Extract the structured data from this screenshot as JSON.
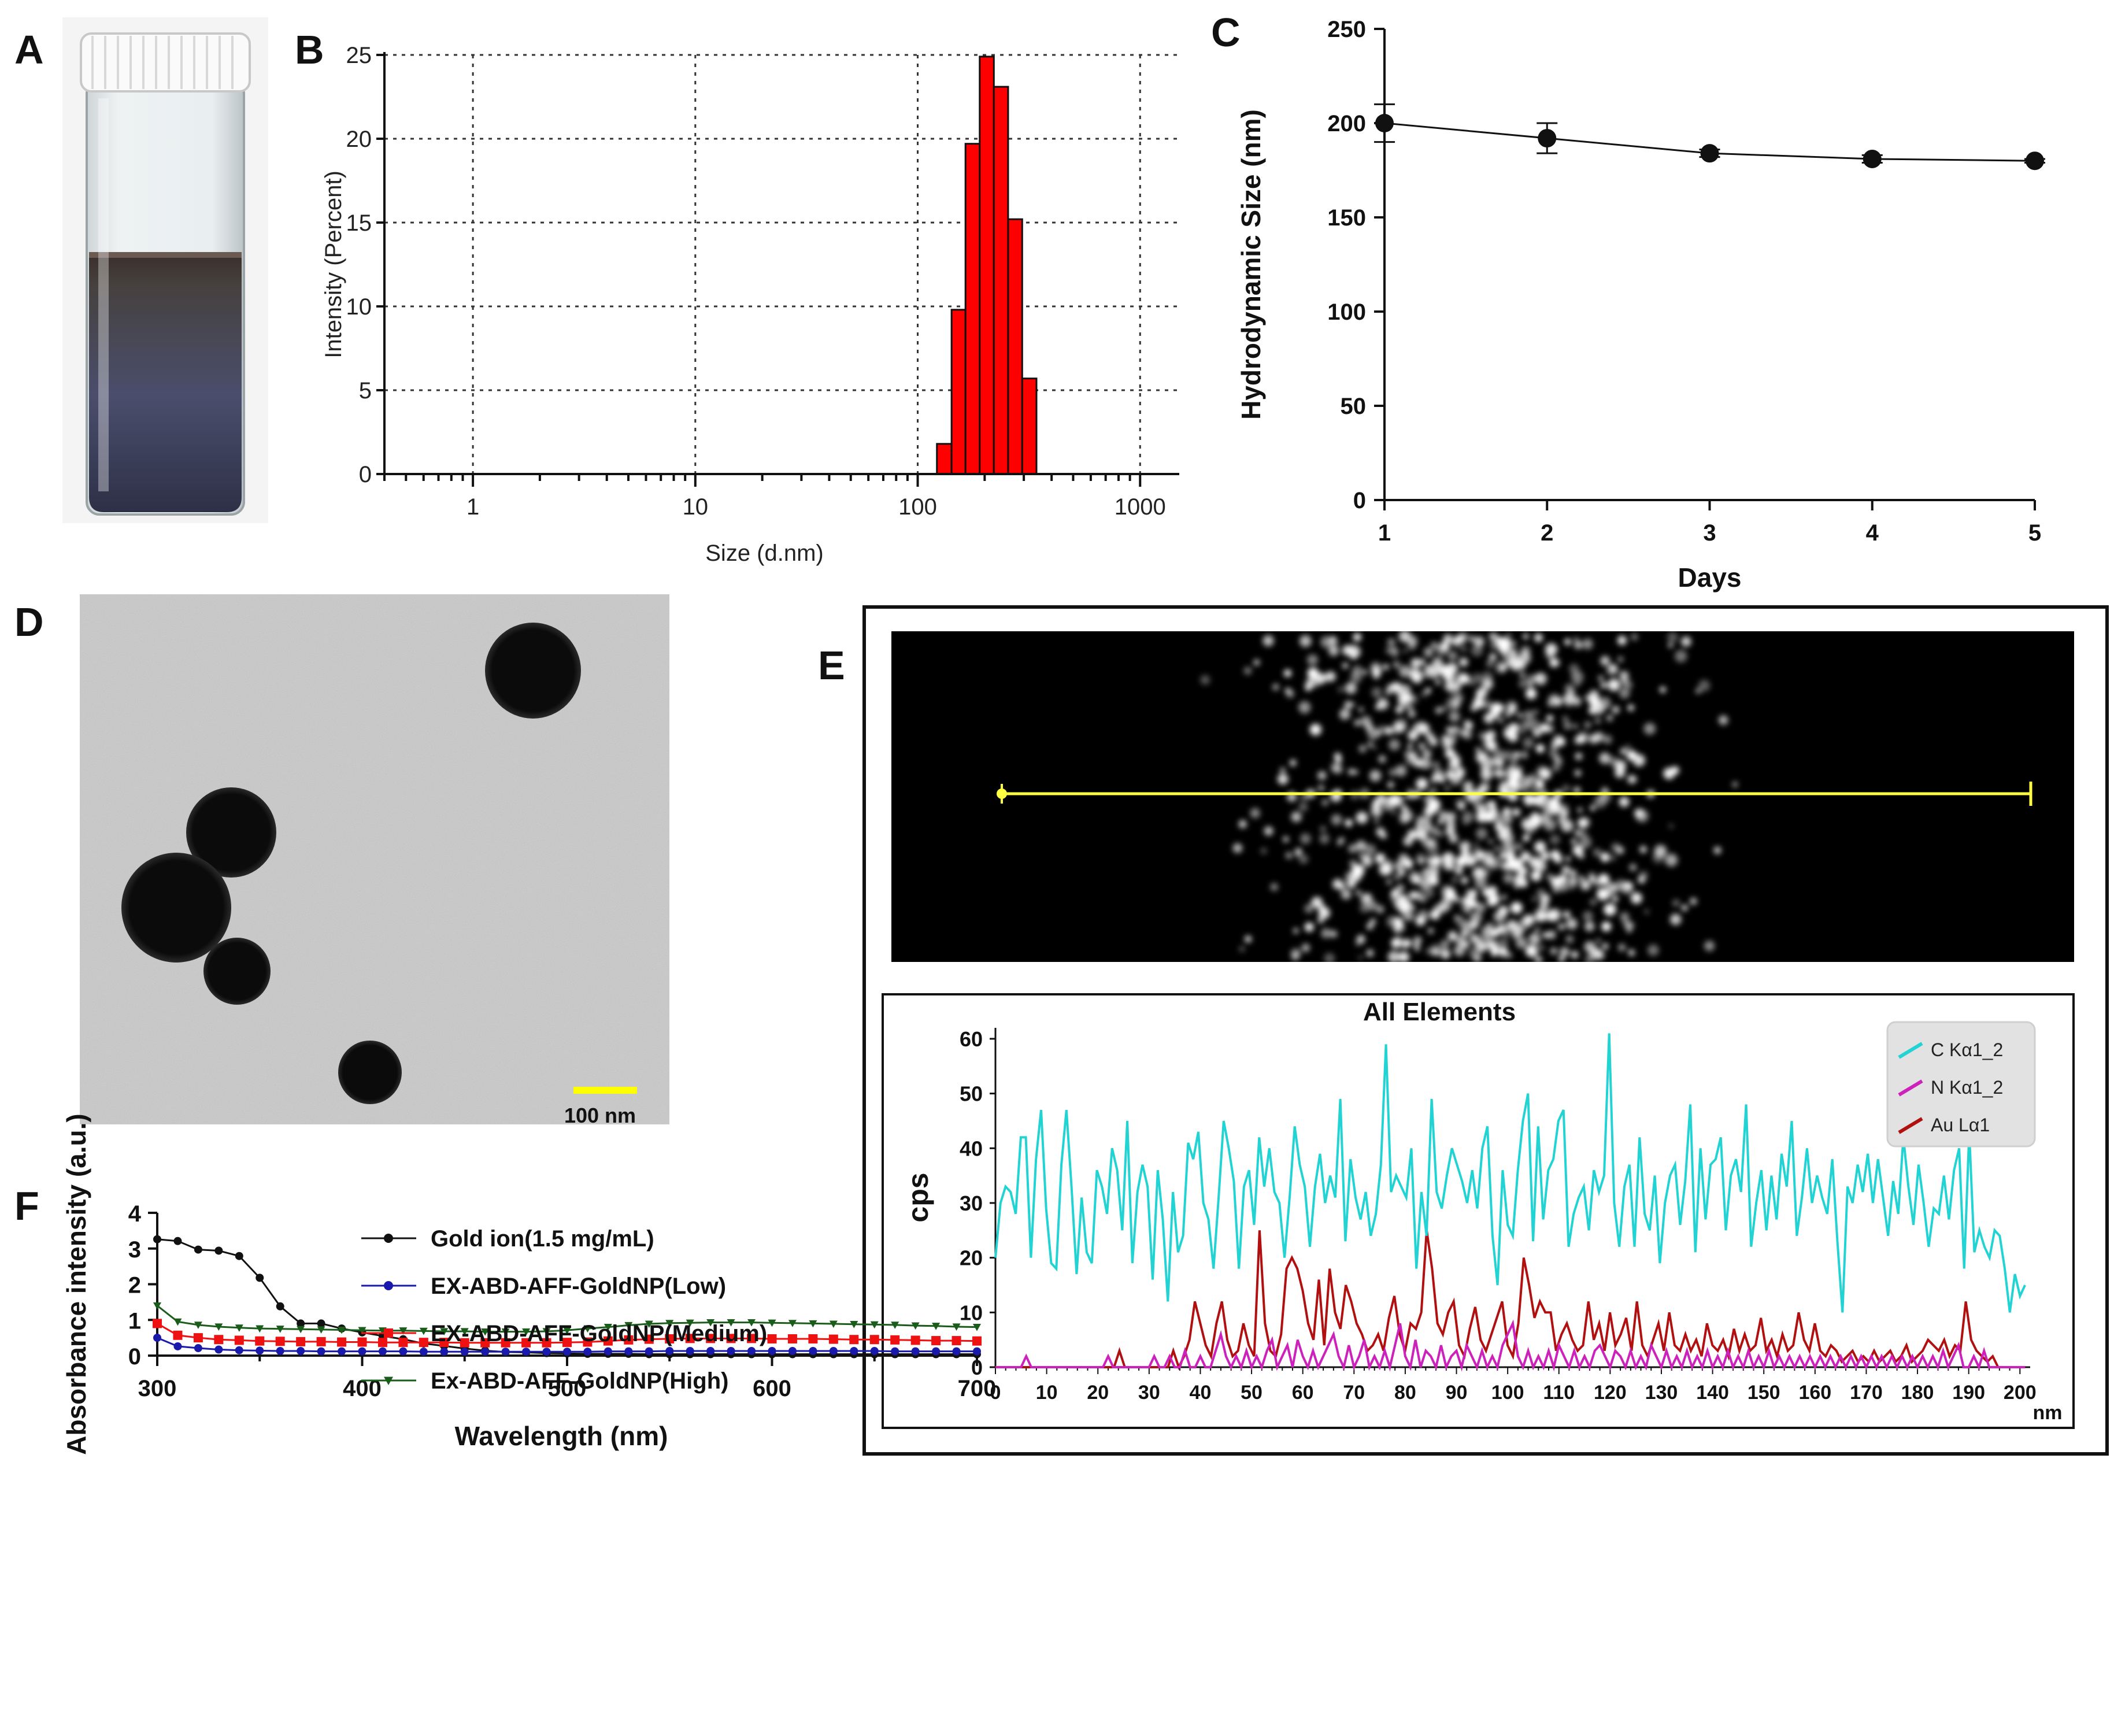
{
  "panels": {
    "A": {
      "label": "A"
    },
    "B": {
      "label": "B"
    },
    "C": {
      "label": "C"
    },
    "D": {
      "label": "D",
      "scalebar": "100 nm"
    },
    "E": {
      "label": "E"
    },
    "F": {
      "label": "F"
    }
  },
  "chart_data": [
    {
      "id": "B",
      "type": "bar",
      "title": "",
      "xlabel": "Size (d.nm)",
      "ylabel": "Intensity (Percent)",
      "xscale": "log",
      "xlim": [
        0.4,
        1500
      ],
      "ylim": [
        0,
        25
      ],
      "xticks": [
        1,
        10,
        100,
        1000
      ],
      "xtick_labels": [
        "1",
        "10",
        "100",
        "1000"
      ],
      "yticks": [
        0,
        5,
        10,
        15,
        20,
        25
      ],
      "grid": true,
      "color": "#ff0000",
      "bins": [
        {
          "from": 122,
          "to": 142,
          "value": 1.8
        },
        {
          "from": 142,
          "to": 164,
          "value": 9.8
        },
        {
          "from": 164,
          "to": 190,
          "value": 19.7
        },
        {
          "from": 190,
          "to": 220,
          "value": 24.9
        },
        {
          "from": 220,
          "to": 255,
          "value": 23.1
        },
        {
          "from": 255,
          "to": 295,
          "value": 15.2
        },
        {
          "from": 295,
          "to": 342,
          "value": 5.7
        }
      ]
    },
    {
      "id": "C",
      "type": "line",
      "xlabel": "Days",
      "ylabel": "Hydrodynamic Size (nm)",
      "xlim": [
        1,
        5
      ],
      "ylim": [
        0,
        250
      ],
      "xticks": [
        1,
        2,
        3,
        4,
        5
      ],
      "yticks": [
        0,
        50,
        100,
        150,
        200,
        250
      ],
      "x": [
        1,
        2,
        3,
        4,
        5
      ],
      "y": [
        200,
        192,
        184,
        181,
        180
      ],
      "err": [
        10,
        8,
        2,
        2,
        1
      ]
    },
    {
      "id": "E",
      "type": "line",
      "title": "All Elements",
      "xlabel": "nm",
      "ylabel": "cps",
      "xlim": [
        0,
        202
      ],
      "ylim": [
        0,
        62
      ],
      "xticks": [
        0,
        10,
        20,
        30,
        40,
        50,
        60,
        70,
        80,
        90,
        100,
        110,
        120,
        130,
        140,
        150,
        160,
        170,
        180,
        190,
        200
      ],
      "yticks": [
        0,
        10,
        20,
        30,
        40,
        50,
        60
      ],
      "legend_position": "top-right",
      "series": [
        {
          "name": "C Kα1_2",
          "color": "#22d3d3",
          "values": [
            20,
            30,
            33,
            32,
            28,
            42,
            42,
            20,
            38,
            47,
            29,
            19,
            18,
            37,
            47,
            33,
            17,
            31,
            21,
            19,
            36,
            33,
            28,
            40,
            36,
            25,
            45,
            19,
            32,
            37,
            33,
            16,
            36,
            27,
            12,
            32,
            21,
            24,
            41,
            38,
            43,
            30,
            27,
            18,
            31,
            45,
            40,
            34,
            18,
            33,
            36,
            26,
            42,
            33,
            40,
            32,
            30,
            20,
            31,
            44,
            37,
            33,
            22,
            33,
            39,
            30,
            35,
            31,
            49,
            23,
            38,
            31,
            27,
            32,
            24,
            28,
            37,
            59,
            32,
            35,
            33,
            31,
            40,
            18,
            32,
            24,
            49,
            32,
            29,
            35,
            40,
            37,
            34,
            30,
            36,
            29,
            40,
            44,
            24,
            15,
            36,
            26,
            24,
            36,
            45,
            50,
            23,
            44,
            27,
            36,
            38,
            45,
            47,
            22,
            28,
            31,
            33,
            25,
            36,
            32,
            35,
            61,
            30,
            22,
            33,
            37,
            22,
            42,
            28,
            25,
            35,
            19,
            30,
            35,
            37,
            26,
            34,
            48,
            21,
            40,
            27,
            37,
            38,
            42,
            25,
            35,
            38,
            32,
            48,
            22,
            30,
            36,
            25,
            35,
            27,
            39,
            33,
            45,
            24,
            31,
            40,
            30,
            35,
            31,
            28,
            38,
            23,
            10,
            33,
            30,
            37,
            32,
            39,
            30,
            38,
            31,
            24,
            34,
            28,
            42,
            33,
            26,
            37,
            30,
            22,
            29,
            28,
            35,
            27,
            36,
            40,
            18,
            43,
            21,
            25,
            22,
            20,
            25,
            24,
            18,
            10,
            17,
            13,
            15
          ]
        },
        {
          "name": "N Kα1_2",
          "color": "#cc22bb",
          "values": [
            0,
            0,
            0,
            0,
            0,
            0,
            2,
            0,
            0,
            0,
            0,
            0,
            0,
            0,
            0,
            0,
            0,
            0,
            0,
            0,
            0,
            0,
            2,
            0,
            0,
            0,
            0,
            0,
            0,
            0,
            0,
            2,
            0,
            0,
            2,
            0,
            0,
            3,
            0,
            0,
            2,
            0,
            0,
            3,
            6,
            2,
            0,
            2,
            0,
            3,
            0,
            2,
            0,
            3,
            5,
            0,
            2,
            4,
            0,
            5,
            2,
            0,
            3,
            0,
            2,
            4,
            6,
            2,
            0,
            4,
            0,
            2,
            5,
            0,
            2,
            0,
            3,
            0,
            4,
            8,
            2,
            0,
            5,
            0,
            3,
            2,
            0,
            4,
            0,
            2,
            3,
            0,
            4,
            2,
            0,
            3,
            0,
            2,
            0,
            4,
            6,
            8,
            2,
            0,
            3,
            0,
            2,
            0,
            3,
            0,
            4,
            2,
            0,
            3,
            0,
            2,
            0,
            3,
            4,
            2,
            0,
            3,
            2,
            0,
            3,
            0,
            2,
            0,
            4,
            2,
            0,
            3,
            0,
            2,
            0,
            3,
            0,
            2,
            0,
            3,
            0,
            2,
            0,
            3,
            0,
            2,
            0,
            3,
            0,
            2,
            0,
            3,
            0,
            2,
            0,
            2,
            0,
            2,
            0,
            2,
            0,
            2,
            0,
            2,
            0,
            2,
            0,
            2,
            0,
            2,
            0,
            2,
            0,
            2,
            0,
            2,
            0,
            2,
            0,
            2,
            0,
            2,
            0,
            2,
            0,
            3,
            0,
            2,
            4,
            0,
            0,
            2,
            0,
            3,
            0,
            0,
            0,
            0,
            0,
            0,
            0,
            0
          ]
        },
        {
          "name": "Au Lα1",
          "color": "#b01010",
          "values": [
            0,
            0,
            0,
            0,
            0,
            0,
            0,
            0,
            0,
            0,
            0,
            0,
            0,
            0,
            0,
            0,
            0,
            0,
            0,
            0,
            0,
            0,
            0,
            3,
            0,
            0,
            0,
            0,
            0,
            0,
            0,
            0,
            0,
            3,
            0,
            2,
            5,
            12,
            8,
            4,
            2,
            8,
            12,
            5,
            2,
            3,
            8,
            4,
            2,
            25,
            8,
            3,
            2,
            6,
            18,
            20,
            18,
            14,
            8,
            5,
            16,
            4,
            18,
            10,
            7,
            15,
            12,
            8,
            6,
            3,
            4,
            6,
            3,
            9,
            13,
            6,
            3,
            8,
            7,
            10,
            25,
            18,
            8,
            6,
            10,
            12,
            4,
            2,
            7,
            11,
            5,
            3,
            6,
            9,
            12,
            4,
            2,
            8,
            20,
            15,
            9,
            12,
            10,
            10,
            3,
            6,
            8,
            5,
            3,
            4,
            12,
            5,
            8,
            3,
            10,
            4,
            6,
            9,
            3,
            12,
            4,
            2,
            5,
            8,
            3,
            10,
            4,
            3,
            6,
            3,
            5,
            2,
            8,
            4,
            3,
            5,
            2,
            7,
            3,
            6,
            3,
            4,
            9,
            3,
            5,
            2,
            6,
            3,
            4,
            10,
            5,
            3,
            8,
            3,
            2,
            4,
            3,
            1,
            2,
            3,
            1,
            2,
            1,
            3,
            1,
            2,
            3,
            1,
            2,
            4,
            1,
            2,
            3,
            5,
            4,
            3,
            5,
            2,
            4,
            3,
            12,
            5,
            3,
            2,
            1,
            2,
            0,
            0,
            0,
            0,
            0,
            0
          ]
        }
      ]
    },
    {
      "id": "F",
      "type": "line",
      "xlabel": "Wavelength (nm)",
      "ylabel": "Absorbance intensity (a.u.)",
      "xlim": [
        300,
        700
      ],
      "ylim": [
        0,
        4
      ],
      "xticks": [
        300,
        400,
        500,
        600,
        700
      ],
      "yticks": [
        0,
        1,
        2,
        3,
        4
      ],
      "legend_position": "top-right",
      "x": [
        300,
        310,
        320,
        330,
        340,
        350,
        360,
        370,
        380,
        390,
        400,
        410,
        420,
        430,
        440,
        450,
        460,
        470,
        480,
        490,
        500,
        510,
        520,
        530,
        540,
        550,
        560,
        570,
        580,
        590,
        600,
        610,
        620,
        630,
        640,
        650,
        660,
        670,
        680,
        690,
        700
      ],
      "series": [
        {
          "name": "Gold ion(1.5 mg/mL)",
          "color": "#111111",
          "marker": "circle",
          "values": [
            3.26,
            3.21,
            2.97,
            2.94,
            2.79,
            2.18,
            1.38,
            0.9,
            0.9,
            0.76,
            0.65,
            0.55,
            0.46,
            0.34,
            0.27,
            0.2,
            0.14,
            0.1,
            0.09,
            0.07,
            0.06,
            0.05,
            0.05,
            0.05,
            0.04,
            0.04,
            0.04,
            0.04,
            0.04,
            0.04,
            0.04,
            0.04,
            0.04,
            0.04,
            0.04,
            0.04,
            0.04,
            0.04,
            0.04,
            0.04,
            0.04
          ]
        },
        {
          "name": "EX-ABD-AFF-GoldNP(Low)",
          "color": "#1a1aaa",
          "marker": "circle",
          "values": [
            0.5,
            0.26,
            0.21,
            0.17,
            0.15,
            0.14,
            0.13,
            0.13,
            0.12,
            0.12,
            0.12,
            0.12,
            0.12,
            0.11,
            0.11,
            0.11,
            0.11,
            0.11,
            0.11,
            0.11,
            0.11,
            0.11,
            0.12,
            0.12,
            0.12,
            0.13,
            0.13,
            0.13,
            0.13,
            0.13,
            0.13,
            0.13,
            0.13,
            0.13,
            0.13,
            0.13,
            0.12,
            0.12,
            0.12,
            0.12,
            0.12
          ]
        },
        {
          "name": "EX-ABD-AFF-GoldNP(Medium)",
          "color": "#ee1111",
          "marker": "square",
          "values": [
            0.9,
            0.57,
            0.5,
            0.45,
            0.43,
            0.41,
            0.4,
            0.39,
            0.39,
            0.38,
            0.38,
            0.37,
            0.37,
            0.37,
            0.37,
            0.36,
            0.36,
            0.36,
            0.36,
            0.36,
            0.37,
            0.38,
            0.41,
            0.44,
            0.46,
            0.47,
            0.48,
            0.48,
            0.48,
            0.48,
            0.47,
            0.47,
            0.47,
            0.46,
            0.45,
            0.45,
            0.44,
            0.43,
            0.42,
            0.42,
            0.41
          ]
        },
        {
          "name": "Ex-ABD-AFF-GoldNP(High)",
          "color": "#1a5c1a",
          "marker": "triangle-down",
          "values": [
            1.4,
            0.95,
            0.86,
            0.81,
            0.78,
            0.76,
            0.75,
            0.74,
            0.73,
            0.72,
            0.71,
            0.7,
            0.7,
            0.69,
            0.68,
            0.68,
            0.67,
            0.67,
            0.67,
            0.68,
            0.71,
            0.76,
            0.8,
            0.85,
            0.89,
            0.91,
            0.92,
            0.93,
            0.93,
            0.93,
            0.92,
            0.91,
            0.9,
            0.89,
            0.88,
            0.87,
            0.86,
            0.84,
            0.83,
            0.81,
            0.8
          ]
        }
      ]
    }
  ]
}
